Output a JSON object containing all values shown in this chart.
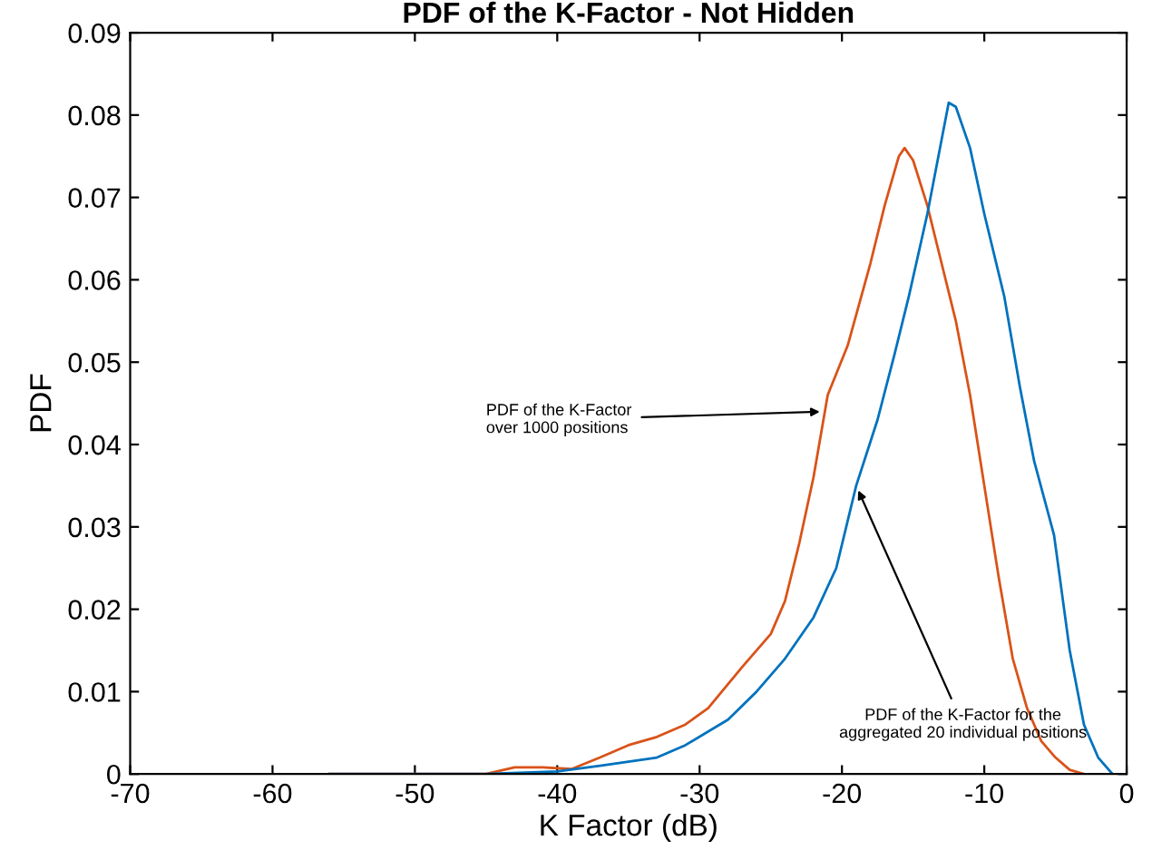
{
  "chart_data": {
    "type": "line",
    "title": "PDF of the K-Factor - Not Hidden",
    "xlabel": "K Factor (dB)",
    "ylabel": "PDF",
    "xlim": [
      -70,
      0
    ],
    "xticks": [
      -70,
      -60,
      -50,
      -40,
      -30,
      -20,
      -10,
      0
    ],
    "ylim": [
      0,
      0.09
    ],
    "yticks": [
      0,
      0.01,
      0.02,
      0.03,
      0.04,
      0.05,
      0.06,
      0.07,
      0.08,
      0.09
    ],
    "grid": false,
    "legend": false,
    "series": [
      {
        "color": "#d95319",
        "x": [
          -56,
          -45,
          -43,
          -41,
          -39,
          -37,
          -35,
          -33,
          -31,
          -29.4,
          -27,
          -25,
          -24,
          -23,
          -22,
          -21,
          -19.6,
          -18,
          -17,
          -16,
          -15.6,
          -15,
          -14,
          -13,
          -12,
          -11,
          -10,
          -9,
          -8,
          -7,
          -6,
          -5,
          -4,
          -3
        ],
        "values": [
          0,
          0,
          0.0008,
          0.0008,
          0.0006,
          0.002,
          0.0035,
          0.0045,
          0.006,
          0.008,
          0.013,
          0.017,
          0.021,
          0.028,
          0.036,
          0.046,
          0.052,
          0.062,
          0.069,
          0.075,
          0.076,
          0.0745,
          0.069,
          0.062,
          0.055,
          0.046,
          0.035,
          0.024,
          0.014,
          0.008,
          0.004,
          0.002,
          0.0005,
          0
        ]
      },
      {
        "color": "#0072bd",
        "x": [
          -56,
          -45,
          -40,
          -37,
          -35,
          -33,
          -31,
          -28,
          -26,
          -24,
          -22,
          -20.4,
          -19,
          -17.5,
          -16.3,
          -15.3,
          -14,
          -13,
          -12.5,
          -12,
          -11,
          -10,
          -8.6,
          -7.5,
          -6.5,
          -5.1,
          -4,
          -3,
          -2,
          -1
        ],
        "values": [
          0,
          0,
          0.0003,
          0.001,
          0.0015,
          0.002,
          0.0035,
          0.0066,
          0.01,
          0.014,
          0.019,
          0.025,
          0.035,
          0.043,
          0.051,
          0.058,
          0.068,
          0.077,
          0.0815,
          0.081,
          0.076,
          0.068,
          0.058,
          0.047,
          0.038,
          0.029,
          0.015,
          0.006,
          0.002,
          0
        ]
      }
    ],
    "annotations": [
      {
        "text": "PDF of the K-Factor\nover 1000 positions",
        "x": -21.2,
        "y": 0.044
      },
      {
        "text": "PDF of the K-Factor for the\naggregated 20 individual positions",
        "x": -19,
        "y": 0.035
      }
    ]
  }
}
